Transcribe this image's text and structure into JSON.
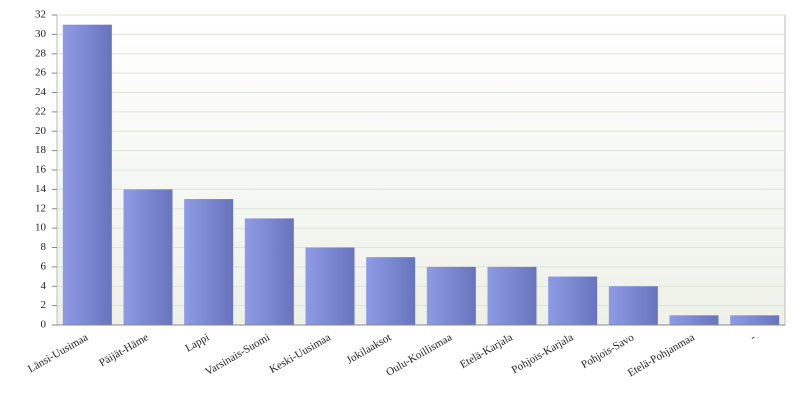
{
  "chart_data": {
    "type": "bar",
    "categories": [
      "Länsi-Uusimaa",
      "Päijät-Häme",
      "Lappi",
      "Varsinais-Suomi",
      "Keski-Uusimaa",
      "Jokilaaksot",
      "Oulu-Koillismaa",
      "Etelä-Karjala",
      "Pohjois-Karjala",
      "Pohjois-Savo",
      "Etelä-Pohjanmaa",
      "-"
    ],
    "values": [
      31,
      14,
      13,
      11,
      8,
      7,
      6,
      6,
      5,
      4,
      1,
      1
    ],
    "color": "#8e9be6",
    "ylim": [
      0,
      32
    ],
    "yticks": [
      0,
      2,
      4,
      6,
      8,
      10,
      12,
      14,
      16,
      18,
      20,
      22,
      24,
      26,
      28,
      30,
      32
    ],
    "grid": true
  }
}
